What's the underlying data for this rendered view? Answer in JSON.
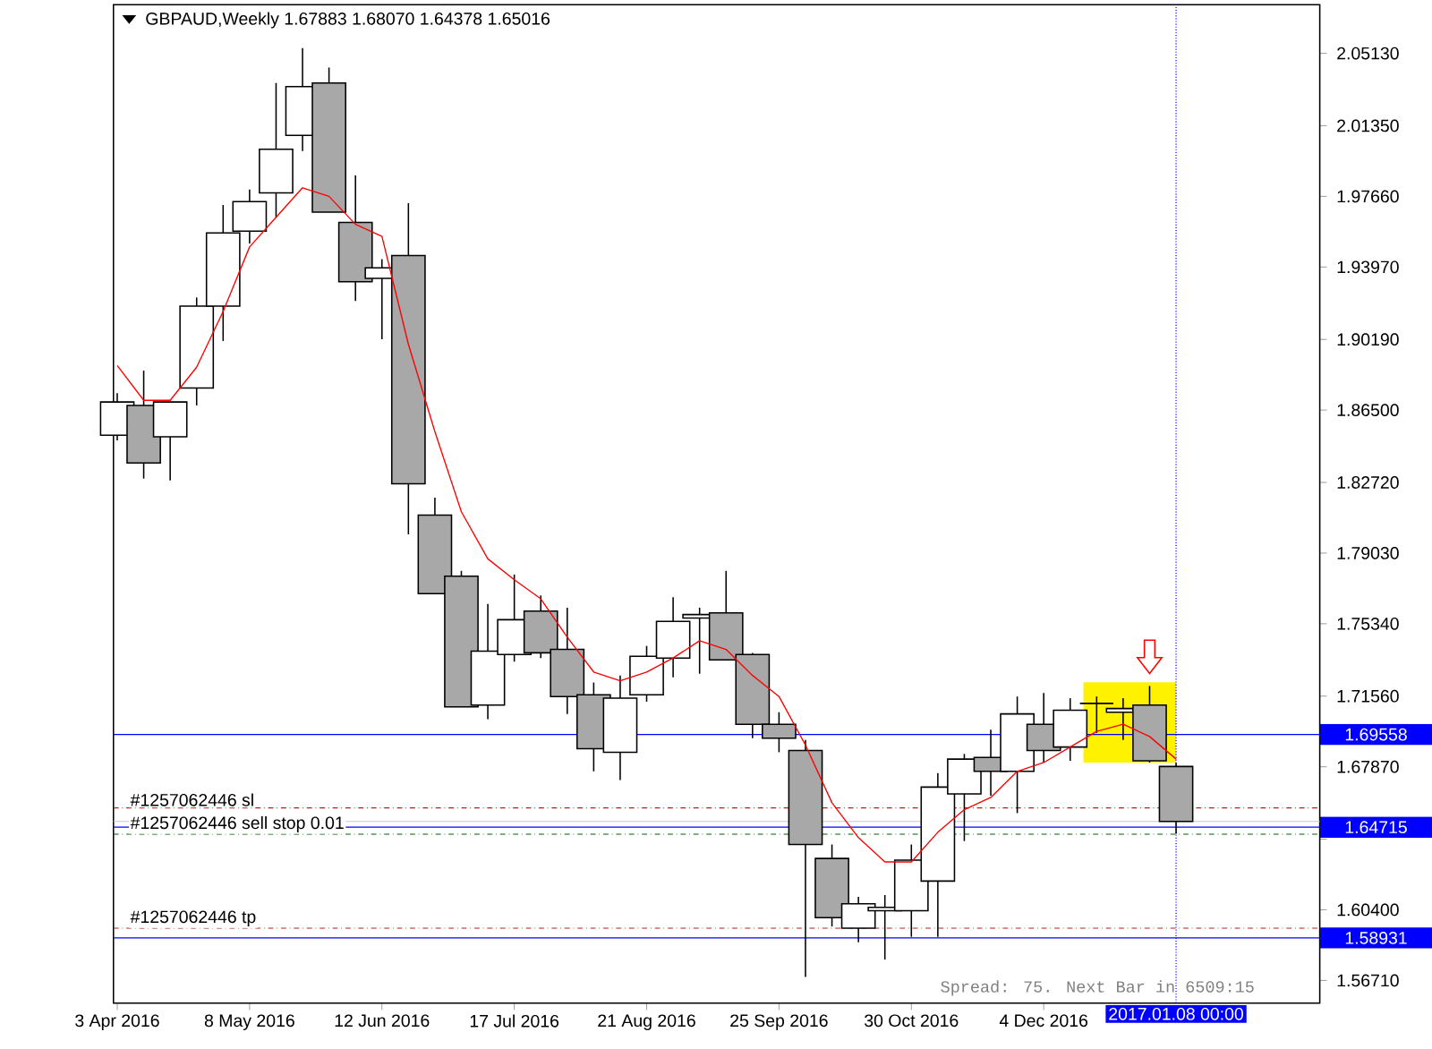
{
  "chart_data": {
    "type": "candlestick",
    "title": "GBPAUD,Weekly  1.67883 1.68070 1.64378 1.65016",
    "x": [
      "2016-04-03",
      "2016-04-10",
      "2016-04-17",
      "2016-04-24",
      "2016-05-01",
      "2016-05-08",
      "2016-05-15",
      "2016-05-22",
      "2016-05-29",
      "2016-06-05",
      "2016-06-12",
      "2016-06-19",
      "2016-06-26",
      "2016-07-03",
      "2016-07-10",
      "2016-07-17",
      "2016-07-24",
      "2016-07-31",
      "2016-08-07",
      "2016-08-14",
      "2016-08-21",
      "2016-08-28",
      "2016-09-04",
      "2016-09-11",
      "2016-09-18",
      "2016-09-25",
      "2016-10-02",
      "2016-10-09",
      "2016-10-16",
      "2016-10-23",
      "2016-10-30",
      "2016-11-06",
      "2016-11-13",
      "2016-11-20",
      "2016-11-27",
      "2016-12-04",
      "2016-12-11",
      "2016-12-18",
      "2016-12-25",
      "2017-01-01",
      "2017-01-08"
    ],
    "ohlc": [
      [
        1.8519,
        1.8738,
        1.8492,
        1.8692
      ],
      [
        1.8674,
        1.8856,
        1.8292,
        1.8374
      ],
      [
        1.851,
        1.8692,
        1.8283,
        1.8692
      ],
      [
        1.8765,
        1.9238,
        1.8674,
        1.9193
      ],
      [
        1.9193,
        1.9721,
        1.9011,
        1.9575
      ],
      [
        1.9584,
        1.9802,
        1.952,
        1.9739
      ],
      [
        1.9784,
        2.0358,
        1.9657,
        2.0012
      ],
      [
        2.0085,
        2.054,
        2.0003,
        2.0339
      ],
      [
        2.0358,
        2.0439,
        1.9684,
        1.9684
      ],
      [
        1.963,
        1.9875,
        1.922,
        1.932
      ],
      [
        1.9338,
        1.9438,
        1.902,
        1.9393
      ],
      [
        1.9457,
        1.973,
        1.8001,
        1.8265
      ],
      [
        1.8101,
        1.8192,
        1.7691,
        1.7691
      ],
      [
        1.7782,
        1.781,
        1.71,
        1.71
      ],
      [
        1.7109,
        1.7637,
        1.7036,
        1.7391
      ],
      [
        1.7373,
        1.7791,
        1.7336,
        1.7555
      ],
      [
        1.76,
        1.7682,
        1.7355,
        1.7382
      ],
      [
        1.74,
        1.7618,
        1.7063,
        1.7154
      ],
      [
        1.7163,
        1.7227,
        1.6763,
        1.6881
      ],
      [
        1.6863,
        1.7264,
        1.6718,
        1.7145
      ],
      [
        1.7163,
        1.7418,
        1.7127,
        1.7364
      ],
      [
        1.7355,
        1.7673,
        1.7254,
        1.7546
      ],
      [
        1.7564,
        1.7618,
        1.7273,
        1.7582
      ],
      [
        1.7591,
        1.781,
        1.7345,
        1.7345
      ],
      [
        1.7373,
        1.7382,
        1.6936,
        1.7009
      ],
      [
        1.7009,
        1.7072,
        1.6863,
        1.6936
      ],
      [
        1.6872,
        1.6927,
        1.5689,
        1.6381
      ],
      [
        1.6308,
        1.6381,
        1.5953,
        1.5999
      ],
      [
        1.5944,
        1.6108,
        1.5871,
        1.6071
      ],
      [
        1.6035,
        1.6117,
        1.578,
        1.6053
      ],
      [
        1.6035,
        1.6381,
        1.5899,
        1.6299
      ],
      [
        1.619,
        1.6754,
        1.5899,
        1.6681
      ],
      [
        1.6645,
        1.6854,
        1.6399,
        1.6827
      ],
      [
        1.6836,
        1.6981,
        1.6636,
        1.6763
      ],
      [
        1.6763,
        1.7154,
        1.6545,
        1.7063
      ],
      [
        1.7009,
        1.7172,
        1.6809,
        1.6872
      ],
      [
        1.689,
        1.7145,
        1.6818,
        1.7082
      ],
      [
        1.7118,
        1.7154,
        1.6963,
        1.7118
      ],
      [
        1.7072,
        1.7145,
        1.6927,
        1.7091
      ],
      [
        1.7109,
        1.7209,
        1.6809,
        1.6818
      ],
      [
        1.67883,
        1.6807,
        1.64378,
        1.65016
      ]
    ],
    "series": [
      {
        "type": "line",
        "color": "#ff0000",
        "values": [
          1.8883,
          1.8701,
          1.8701,
          1.8874,
          1.9165,
          1.9502,
          1.9657,
          1.9811,
          1.9766,
          1.962,
          1.9557,
          1.8993,
          1.8537,
          1.8119,
          1.7873,
          1.7764,
          1.7664,
          1.7464,
          1.7282,
          1.7236,
          1.7282,
          1.7355,
          1.7445,
          1.74,
          1.7264,
          1.7154,
          1.69,
          1.6599,
          1.6417,
          1.629,
          1.629,
          1.6445,
          1.6563,
          1.6627,
          1.6763,
          1.6809,
          1.689,
          1.6972,
          1.7009,
          1.6945,
          1.6827
        ]
      }
    ],
    "xlim": [
      "2016-04-02",
      "2017-02-15"
    ],
    "xticks": [
      {
        "value": "2016-04-03",
        "label": "3 Apr 2016"
      },
      {
        "value": "2016-05-08",
        "label": "8 May 2016"
      },
      {
        "value": "2016-06-12",
        "label": "12 Jun 2016"
      },
      {
        "value": "2016-07-17",
        "label": "17 Jul 2016"
      },
      {
        "value": "2016-08-21",
        "label": "21 Aug 2016"
      },
      {
        "value": "2016-09-25",
        "label": "25 Sep 2016"
      },
      {
        "value": "2016-10-30",
        "label": "30 Oct 2016"
      },
      {
        "value": "2016-12-04",
        "label": "4 Dec 2016"
      }
    ],
    "ylim": [
      1.5553,
      2.0767
    ],
    "yticks": [
      {
        "value": 2.0513,
        "label": "2.05130"
      },
      {
        "value": 2.0135,
        "label": "2.01350"
      },
      {
        "value": 1.9766,
        "label": "1.97660"
      },
      {
        "value": 1.9397,
        "label": "1.93970"
      },
      {
        "value": 1.9019,
        "label": "1.90190"
      },
      {
        "value": 1.865,
        "label": "1.86500"
      },
      {
        "value": 1.8272,
        "label": "1.82720"
      },
      {
        "value": 1.7903,
        "label": "1.79030"
      },
      {
        "value": 1.7534,
        "label": "1.75340"
      },
      {
        "value": 1.7156,
        "label": "1.71560"
      },
      {
        "value": 1.6787,
        "label": "1.67870"
      },
      {
        "value": 1.6409,
        "label": null
      },
      {
        "value": 1.604,
        "label": "1.60400"
      },
      {
        "value": 1.5671,
        "label": "1.56710"
      }
    ],
    "ref_lines": [
      {
        "axis": "y",
        "value": 1.69558,
        "label": "1.69558",
        "color": "#0000ff",
        "line_style": "solid"
      },
      {
        "axis": "y",
        "value": 1.64715,
        "label": "1.64715",
        "color": "#0000ff",
        "line_style": "solid"
      },
      {
        "axis": "y",
        "value": 1.58931,
        "label": "1.58931",
        "color": "#0000ff",
        "line_style": "solid"
      },
      {
        "axis": "y",
        "value": 1.65016,
        "label": null,
        "color": "#c8c8c8",
        "line_style": "solid"
      },
      {
        "axis": "y",
        "value": 1.6572,
        "label": "#1257062446 sl",
        "color": "#b22222",
        "line_style": "dashed"
      },
      {
        "axis": "y",
        "value": 1.6435,
        "label": "#1257062446 sell stop 0.01",
        "color": "#006400",
        "line_style": "dashed"
      },
      {
        "axis": "y",
        "value": 1.5944,
        "label": "#1257062446 tp",
        "color": "#b22222",
        "line_style": "dashed"
      },
      {
        "axis": "x",
        "value": "2017-01-08",
        "label": "2017.01.08 00:00",
        "color": "#0000ff",
        "line_style": "dotted"
      }
    ],
    "annotations": [
      "Spread: 75. Next Bar in 6509:15"
    ],
    "grid": false
  }
}
